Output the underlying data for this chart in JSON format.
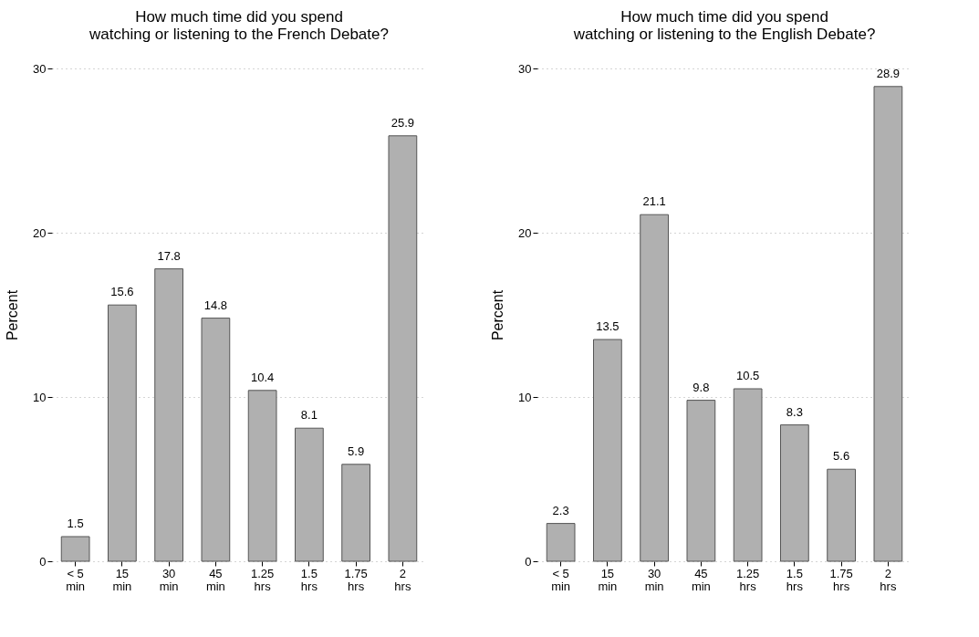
{
  "chart_data": [
    {
      "type": "bar",
      "title": "How much time did you spend\nwatching or listening to the French Debate?",
      "ylabel": "Percent",
      "categories": [
        "< 5 min",
        "15 min",
        "30 min",
        "45 min",
        "1.25 hrs",
        "1.5 hrs",
        "1.75 hrs",
        "2 hrs"
      ],
      "values": [
        1.5,
        15.6,
        17.8,
        14.8,
        10.4,
        8.1,
        5.9,
        25.9
      ],
      "color": "#b0b0b0",
      "ylim": [
        0,
        30
      ],
      "yticks": [
        0,
        10,
        20,
        30
      ],
      "grid": "y",
      "data_labels": true
    },
    {
      "type": "bar",
      "title": "How much time did you spend\nwatching or listening to the English Debate?",
      "ylabel": "Percent",
      "categories": [
        "< 5 min",
        "15 min",
        "30 min",
        "45 min",
        "1.25 hrs",
        "1.5 hrs",
        "1.75 hrs",
        "2 hrs"
      ],
      "values": [
        2.3,
        13.5,
        21.1,
        9.8,
        10.5,
        8.3,
        5.6,
        28.9
      ],
      "color": "#b0b0b0",
      "ylim": [
        0,
        30
      ],
      "yticks": [
        0,
        10,
        20,
        30
      ],
      "grid": "y",
      "data_labels": true
    }
  ]
}
